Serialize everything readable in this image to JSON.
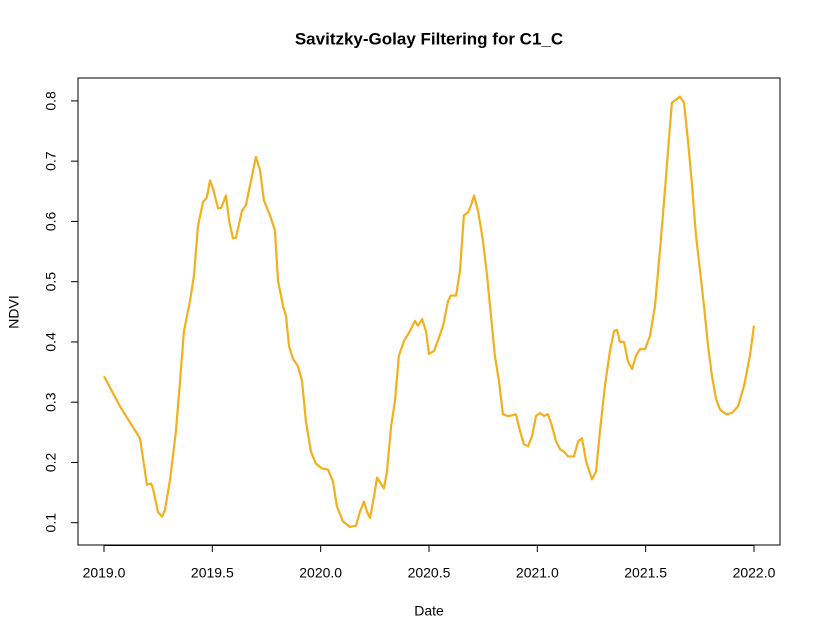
{
  "chart_data": {
    "type": "line",
    "title": "Savitzky-Golay Filtering for C1_C",
    "xlabel": "Date",
    "ylabel": "NDVI",
    "color": "#f2b01e",
    "x": [
      2019.0,
      2019.074,
      2019.166,
      2019.18,
      2019.198,
      2019.217,
      2019.226,
      2019.249,
      2019.268,
      2019.282,
      2019.305,
      2019.332,
      2019.351,
      2019.369,
      2019.397,
      2019.415,
      2019.434,
      2019.457,
      2019.475,
      2019.489,
      2019.503,
      2019.526,
      2019.54,
      2019.563,
      2019.577,
      2019.595,
      2019.609,
      2019.637,
      2019.655,
      2019.674,
      2019.701,
      2019.72,
      2019.738,
      2019.766,
      2019.789,
      2019.803,
      2019.826,
      2019.84,
      2019.854,
      2019.872,
      2019.895,
      2019.914,
      2019.932,
      2019.955,
      2019.978,
      2020.006,
      2020.034,
      2020.057,
      2020.075,
      2020.103,
      2020.135,
      2020.163,
      2020.181,
      2020.2,
      2020.214,
      2020.228,
      2020.246,
      2020.26,
      2020.278,
      2020.292,
      2020.306,
      2020.325,
      2020.343,
      2020.361,
      2020.385,
      2020.412,
      2020.435,
      2020.449,
      2020.468,
      2020.486,
      2020.5,
      2020.523,
      2020.541,
      2020.565,
      2020.588,
      2020.601,
      2020.625,
      2020.643,
      2020.661,
      2020.68,
      2020.694,
      2020.708,
      2020.726,
      2020.749,
      2020.768,
      2020.786,
      2020.804,
      2020.823,
      2020.841,
      2020.864,
      2020.883,
      2020.901,
      2020.92,
      2020.938,
      2020.957,
      2020.975,
      2020.994,
      2021.012,
      2021.031,
      2021.049,
      2021.068,
      2021.086,
      2021.105,
      2021.123,
      2021.142,
      2021.169,
      2021.188,
      2021.206,
      2021.225,
      2021.252,
      2021.271,
      2021.289,
      2021.312,
      2021.335,
      2021.354,
      2021.368,
      2021.381,
      2021.4,
      2021.418,
      2021.437,
      2021.455,
      2021.474,
      2021.497,
      2021.52,
      2021.543,
      2021.566,
      2021.589,
      2021.607,
      2021.621,
      2021.64,
      2021.658,
      2021.677,
      2021.695,
      2021.714,
      2021.732,
      2021.751,
      2021.769,
      2021.788,
      2021.806,
      2021.825,
      2021.843,
      2021.871,
      2021.898,
      2021.926,
      2021.954,
      2021.981,
      2022.0
    ],
    "values": [
      0.343,
      0.293,
      0.24,
      0.207,
      0.163,
      0.165,
      0.157,
      0.118,
      0.11,
      0.122,
      0.172,
      0.252,
      0.335,
      0.418,
      0.468,
      0.51,
      0.593,
      0.632,
      0.64,
      0.668,
      0.655,
      0.622,
      0.622,
      0.643,
      0.602,
      0.572,
      0.573,
      0.618,
      0.627,
      0.66,
      0.707,
      0.685,
      0.635,
      0.61,
      0.585,
      0.502,
      0.46,
      0.443,
      0.393,
      0.372,
      0.36,
      0.335,
      0.268,
      0.218,
      0.198,
      0.19,
      0.188,
      0.168,
      0.127,
      0.102,
      0.093,
      0.095,
      0.118,
      0.135,
      0.118,
      0.108,
      0.143,
      0.175,
      0.165,
      0.157,
      0.185,
      0.26,
      0.302,
      0.377,
      0.402,
      0.418,
      0.435,
      0.427,
      0.438,
      0.418,
      0.38,
      0.385,
      0.402,
      0.427,
      0.468,
      0.477,
      0.477,
      0.518,
      0.61,
      0.615,
      0.627,
      0.643,
      0.618,
      0.568,
      0.51,
      0.443,
      0.377,
      0.335,
      0.28,
      0.277,
      0.278,
      0.28,
      0.252,
      0.23,
      0.227,
      0.243,
      0.277,
      0.282,
      0.277,
      0.28,
      0.26,
      0.235,
      0.222,
      0.218,
      0.21,
      0.21,
      0.235,
      0.24,
      0.202,
      0.172,
      0.185,
      0.252,
      0.327,
      0.385,
      0.418,
      0.42,
      0.4,
      0.4,
      0.368,
      0.355,
      0.377,
      0.388,
      0.388,
      0.41,
      0.46,
      0.552,
      0.652,
      0.735,
      0.797,
      0.802,
      0.807,
      0.797,
      0.735,
      0.66,
      0.577,
      0.518,
      0.46,
      0.393,
      0.343,
      0.305,
      0.288,
      0.28,
      0.282,
      0.293,
      0.327,
      0.377,
      0.427
    ],
    "xlim": [
      2018.88,
      2022.12
    ],
    "xticks": [
      {
        "value": 2019,
        "label": "2019.0"
      },
      {
        "value": 2019.5,
        "label": "2019.5"
      },
      {
        "value": 2020,
        "label": "2020.0"
      },
      {
        "value": 2020.5,
        "label": "2020.5"
      },
      {
        "value": 2021,
        "label": "2021.0"
      },
      {
        "value": 2021.5,
        "label": "2021.5"
      },
      {
        "value": 2022,
        "label": "2022.0"
      }
    ],
    "ylim": [
      0.063,
      0.838
    ],
    "yticks": [
      0.1,
      0.2,
      0.3,
      0.4,
      0.5,
      0.6,
      0.7,
      0.8
    ]
  }
}
